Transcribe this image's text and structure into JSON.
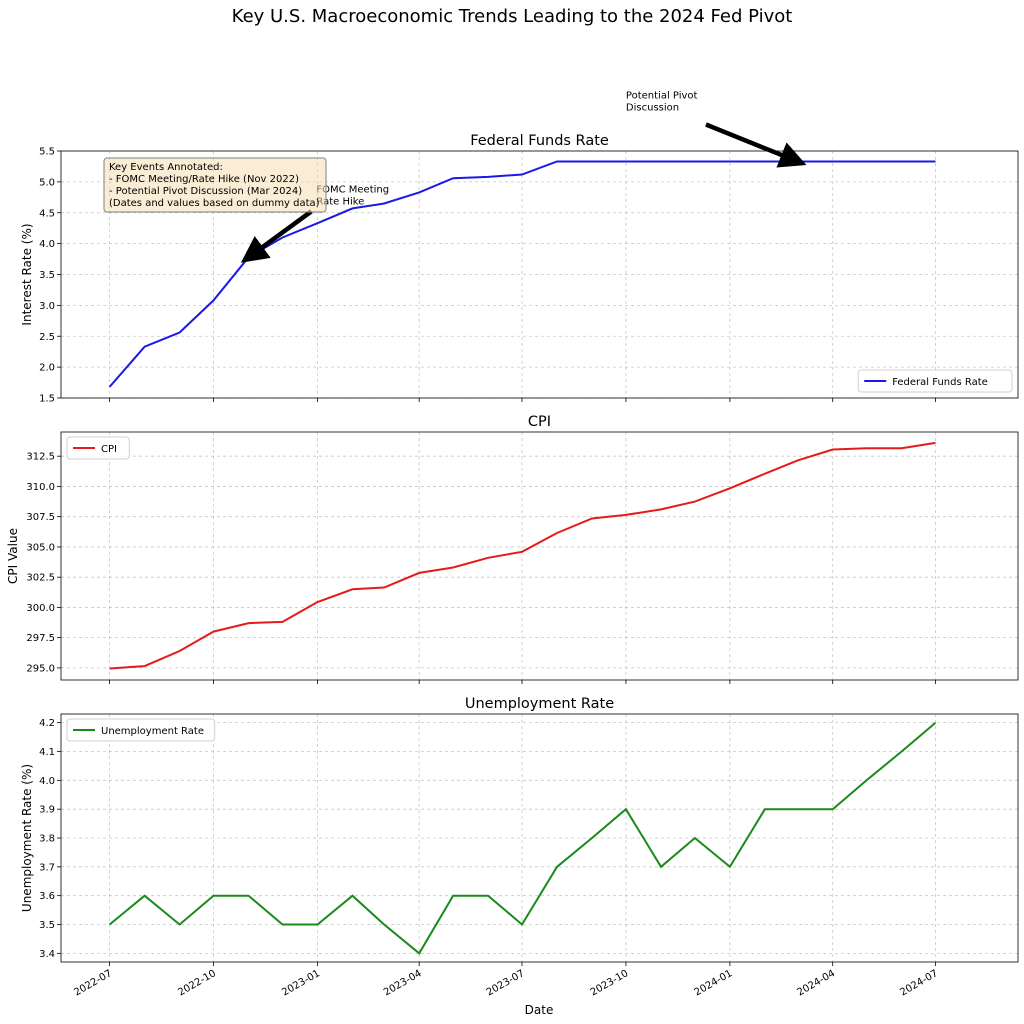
{
  "figure": {
    "title": "Key U.S. Macroeconomic Trends Leading to the 2024 Fed Pivot",
    "xlabel": "Date",
    "x_ticks": [
      "2022-07",
      "2022-10",
      "2023-01",
      "2023-04",
      "2023-07",
      "2023-10",
      "2024-01",
      "2024-04",
      "2024-07"
    ]
  },
  "chart_data": [
    {
      "type": "line",
      "title": "Federal Funds Rate",
      "ylabel": "Interest Rate (%)",
      "ylim": [
        1.5,
        5.5
      ],
      "y_ticks": [
        "1.5",
        "2.0",
        "2.5",
        "3.0",
        "3.5",
        "4.0",
        "4.5",
        "5.0",
        "5.5"
      ],
      "legend_loc": "lower-right",
      "grid": true,
      "color": "#1a1ae6",
      "series": [
        {
          "name": "Federal Funds Rate",
          "x": [
            "2022-07-01",
            "2022-08-01",
            "2022-09-01",
            "2022-10-01",
            "2022-11-01",
            "2022-12-01",
            "2023-01-01",
            "2023-02-01",
            "2023-03-01",
            "2023-04-01",
            "2023-05-01",
            "2023-06-01",
            "2023-07-01",
            "2023-08-01",
            "2023-09-01",
            "2023-10-01",
            "2023-11-01",
            "2023-12-01",
            "2024-01-01",
            "2024-02-01",
            "2024-03-01",
            "2024-04-01",
            "2024-05-01",
            "2024-06-01",
            "2024-07-01"
          ],
          "values": [
            1.68,
            2.33,
            2.56,
            3.08,
            3.78,
            4.1,
            4.33,
            4.57,
            4.65,
            4.83,
            5.06,
            5.08,
            5.12,
            5.33,
            5.33,
            5.33,
            5.33,
            5.33,
            5.33,
            5.33,
            5.33,
            5.33,
            5.33,
            5.33,
            5.33
          ]
        }
      ],
      "annotations": [
        {
          "text_lines": [
            "FOMC Meeting",
            "Rate Hike"
          ],
          "text_x": "2022-12-31",
          "text_y": 4.83,
          "target_x": "2022-11-01",
          "target_y": 3.78
        },
        {
          "text_lines": [
            "Potential Pivot",
            "Discussion"
          ],
          "text_x": "2023-10-01",
          "text_y": 6.35,
          "target_x": "2024-03-01",
          "target_y": 5.33
        }
      ],
      "info_box": {
        "lines": [
          "Key Events Annotated:",
          "- FOMC Meeting/Rate Hike (Nov 2022)",
          "- Potential Pivot Discussion (Mar 2024)",
          "(Dates and values based on dummy data)"
        ]
      }
    },
    {
      "type": "line",
      "title": "CPI",
      "ylabel": "CPI Value",
      "ylim": [
        294,
        314.5
      ],
      "y_ticks": [
        "295.0",
        "297.5",
        "300.0",
        "302.5",
        "305.0",
        "307.5",
        "310.0",
        "312.5"
      ],
      "legend_loc": "upper-left",
      "grid": true,
      "color": "#e61a1a",
      "series": [
        {
          "name": "CPI",
          "x": [
            "2022-07-01",
            "2022-08-01",
            "2022-09-01",
            "2022-10-01",
            "2022-11-01",
            "2022-12-01",
            "2023-01-01",
            "2023-02-01",
            "2023-03-01",
            "2023-04-01",
            "2023-05-01",
            "2023-06-01",
            "2023-07-01",
            "2023-08-01",
            "2023-09-01",
            "2023-10-01",
            "2023-11-01",
            "2023-12-01",
            "2024-01-01",
            "2024-02-01",
            "2024-03-01",
            "2024-04-01",
            "2024-05-01",
            "2024-06-01",
            "2024-07-01"
          ],
          "values": [
            294.95,
            295.15,
            296.4,
            298.0,
            298.7,
            298.8,
            300.45,
            301.5,
            301.65,
            302.85,
            303.3,
            304.1,
            304.6,
            306.15,
            307.35,
            307.65,
            308.1,
            308.75,
            309.85,
            311.05,
            312.15,
            313.05,
            313.15,
            313.15,
            313.6
          ]
        }
      ]
    },
    {
      "type": "line",
      "title": "Unemployment Rate",
      "ylabel": "Unemployment Rate (%)",
      "ylim": [
        3.37,
        4.23
      ],
      "y_ticks": [
        "3.4",
        "3.5",
        "3.6",
        "3.7",
        "3.8",
        "3.9",
        "4.0",
        "4.1",
        "4.2"
      ],
      "legend_loc": "upper-left",
      "grid": true,
      "color": "#1a8a1a",
      "series": [
        {
          "name": "Unemployment Rate",
          "x": [
            "2022-07-01",
            "2022-08-01",
            "2022-09-01",
            "2022-10-01",
            "2022-11-01",
            "2022-12-01",
            "2023-01-01",
            "2023-02-01",
            "2023-03-01",
            "2023-04-01",
            "2023-05-01",
            "2023-06-01",
            "2023-07-01",
            "2023-08-01",
            "2023-09-01",
            "2023-10-01",
            "2023-11-01",
            "2023-12-01",
            "2024-01-01",
            "2024-02-01",
            "2024-03-01",
            "2024-04-01",
            "2024-05-01",
            "2024-06-01",
            "2024-07-01"
          ],
          "values": [
            3.5,
            3.6,
            3.5,
            3.6,
            3.6,
            3.5,
            3.5,
            3.6,
            3.5,
            3.4,
            3.6,
            3.6,
            3.5,
            3.7,
            3.8,
            3.9,
            3.7,
            3.8,
            3.7,
            3.9,
            3.9,
            3.9,
            4.0,
            4.1,
            4.2
          ]
        }
      ]
    }
  ]
}
